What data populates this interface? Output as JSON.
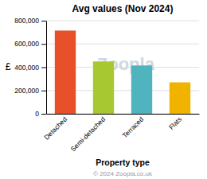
{
  "chart_data": {
    "type": "bar",
    "title": "Avg values (Nov 2024)",
    "categories": [
      "Detached",
      "Semi-detached",
      "Terraced",
      "Flats"
    ],
    "values": [
      715000,
      450000,
      415000,
      270000
    ],
    "colors": [
      "#E8502A",
      "#A8C832",
      "#50B4BE",
      "#F0B400"
    ],
    "xlabel": "Property type",
    "ylabel": "£",
    "ylim": [
      0,
      800000
    ],
    "yticks": [
      0,
      {
        "value": 200000,
        "label": "200,000"
      },
      {
        "value": 400000,
        "label": "400,000"
      },
      {
        "value": 600000,
        "label": "600,000"
      },
      {
        "value": 800000,
        "label": "800,000"
      }
    ],
    "grid": true,
    "annotations": [
      "Zoopla",
      "© 2024 Zoopla.co.uk"
    ]
  }
}
